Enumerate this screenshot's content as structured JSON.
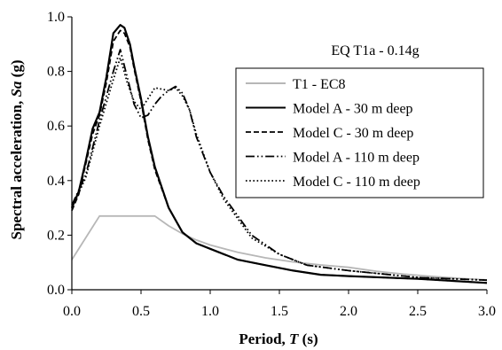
{
  "chart_data": {
    "type": "line",
    "annotation": "EQ T1a - 0.14g",
    "xlabel": {
      "prefix": "Period, ",
      "symbol": "T",
      "suffix": " (s)"
    },
    "ylabel": {
      "prefix": "Spectral acceleration, ",
      "symbol": "Sa",
      "suffix": " (g)"
    },
    "xlim": [
      0,
      3
    ],
    "ylim": [
      0,
      1
    ],
    "xticks": [
      "0.0",
      "0.5",
      "1.0",
      "1.5",
      "2.0",
      "2.5",
      "3.0"
    ],
    "yticks": [
      "0.0",
      "0.2",
      "0.4",
      "0.6",
      "0.8",
      "1.0"
    ],
    "grid": false,
    "legend_position": "right",
    "series": [
      {
        "name": "T1 - EC8",
        "color": "#b7b7b7",
        "dash": "solid",
        "x": [
          0,
          0.2,
          0.6,
          0.7,
          0.8,
          0.9,
          1.0,
          1.2,
          1.4,
          1.6,
          1.8,
          2.0,
          2.2,
          2.4,
          2.6,
          2.8,
          3.0
        ],
        "y": [
          0.11,
          0.27,
          0.27,
          0.234,
          0.205,
          0.182,
          0.164,
          0.137,
          0.117,
          0.102,
          0.091,
          0.082,
          0.068,
          0.057,
          0.049,
          0.042,
          0.036
        ]
      },
      {
        "name": "Model A - 30 m deep",
        "color": "#000000",
        "dash": "solid",
        "x": [
          0,
          0.05,
          0.1,
          0.15,
          0.2,
          0.25,
          0.3,
          0.35,
          0.38,
          0.42,
          0.45,
          0.5,
          0.55,
          0.6,
          0.7,
          0.8,
          0.9,
          1.0,
          1.2,
          1.4,
          1.6,
          1.8,
          2.0,
          2.5,
          3.0
        ],
        "y": [
          0.3,
          0.36,
          0.47,
          0.59,
          0.65,
          0.78,
          0.94,
          0.97,
          0.96,
          0.9,
          0.82,
          0.7,
          0.56,
          0.45,
          0.3,
          0.21,
          0.17,
          0.15,
          0.11,
          0.09,
          0.07,
          0.055,
          0.05,
          0.04,
          0.025
        ]
      },
      {
        "name": "Model C - 30 m deep",
        "color": "#000000",
        "dash": "dashed",
        "x": [
          0,
          0.05,
          0.1,
          0.15,
          0.2,
          0.25,
          0.3,
          0.35,
          0.38,
          0.42,
          0.45,
          0.5,
          0.55,
          0.6,
          0.7,
          0.8,
          0.9,
          1.0,
          1.2,
          1.4,
          1.6,
          1.8,
          2.0,
          2.5,
          3.0
        ],
        "y": [
          0.29,
          0.35,
          0.46,
          0.57,
          0.64,
          0.76,
          0.91,
          0.95,
          0.94,
          0.89,
          0.81,
          0.69,
          0.55,
          0.44,
          0.3,
          0.21,
          0.17,
          0.15,
          0.11,
          0.09,
          0.07,
          0.055,
          0.05,
          0.04,
          0.025
        ]
      },
      {
        "name": "Model A - 110 m deep",
        "color": "#000000",
        "dash": "dash-dot-dot",
        "x": [
          0,
          0.1,
          0.2,
          0.3,
          0.35,
          0.4,
          0.45,
          0.5,
          0.55,
          0.6,
          0.65,
          0.7,
          0.75,
          0.8,
          0.85,
          0.9,
          1.0,
          1.1,
          1.2,
          1.3,
          1.5,
          1.7,
          2.0,
          2.5,
          3.0
        ],
        "y": [
          0.31,
          0.42,
          0.62,
          0.8,
          0.88,
          0.78,
          0.68,
          0.63,
          0.64,
          0.68,
          0.71,
          0.73,
          0.745,
          0.72,
          0.66,
          0.56,
          0.43,
          0.34,
          0.27,
          0.2,
          0.13,
          0.09,
          0.07,
          0.045,
          0.035
        ]
      },
      {
        "name": "Model C - 110 m deep",
        "color": "#000000",
        "dash": "dotted",
        "x": [
          0,
          0.1,
          0.2,
          0.3,
          0.35,
          0.4,
          0.45,
          0.5,
          0.55,
          0.6,
          0.65,
          0.7,
          0.75,
          0.8,
          0.85,
          0.9,
          1.0,
          1.1,
          1.2,
          1.3,
          1.5,
          1.7,
          2.0,
          2.5,
          3.0
        ],
        "y": [
          0.3,
          0.41,
          0.6,
          0.77,
          0.85,
          0.76,
          0.69,
          0.66,
          0.7,
          0.74,
          0.735,
          0.73,
          0.74,
          0.71,
          0.66,
          0.57,
          0.43,
          0.33,
          0.26,
          0.19,
          0.13,
          0.09,
          0.07,
          0.045,
          0.035
        ]
      }
    ]
  }
}
